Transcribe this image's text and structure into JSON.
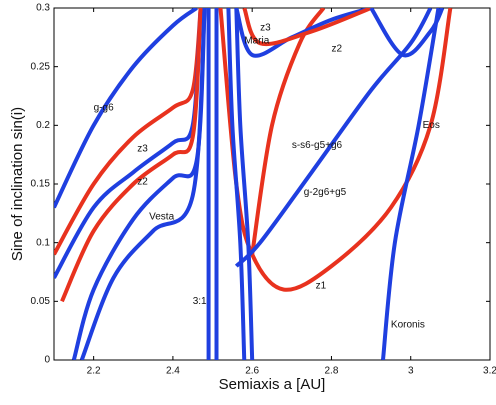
{
  "chart_data": {
    "type": "line",
    "xlabel": "Semiaxis a [AU]",
    "ylabel": "Sine of inclination sin(i)",
    "xlim": [
      2.1,
      3.2
    ],
    "ylim": [
      0,
      0.3
    ],
    "xticks": [
      2.2,
      2.4,
      2.6,
      2.8,
      3,
      3.2
    ],
    "yticks": [
      0,
      0.05,
      0.1,
      0.15,
      0.2,
      0.25,
      0.3
    ],
    "series": [
      {
        "color": "#1f3fe0",
        "x": [
          2.1,
          2.2,
          2.3,
          2.4,
          2.46
        ],
        "values": [
          0.13,
          0.2,
          0.25,
          0.285,
          0.3
        ]
      },
      {
        "color": "#e8321e",
        "x": [
          2.1,
          2.2,
          2.3,
          2.4,
          2.45,
          2.47
        ],
        "values": [
          0.09,
          0.15,
          0.19,
          0.215,
          0.23,
          0.3
        ]
      },
      {
        "color": "#1f3fe0",
        "x": [
          2.1,
          2.2,
          2.3,
          2.4,
          2.45,
          2.47
        ],
        "values": [
          0.07,
          0.13,
          0.16,
          0.185,
          0.2,
          0.3
        ]
      },
      {
        "color": "#e8321e",
        "x": [
          2.12,
          2.2,
          2.3,
          2.4,
          2.45,
          2.47
        ],
        "values": [
          0.05,
          0.11,
          0.15,
          0.175,
          0.19,
          0.3
        ]
      },
      {
        "color": "#1f3fe0",
        "x": [
          2.15,
          2.2,
          2.3,
          2.4,
          2.46,
          2.48
        ],
        "values": [
          0,
          0.06,
          0.12,
          0.155,
          0.17,
          0.3
        ]
      },
      {
        "color": "#1f3fe0",
        "x": [
          2.17,
          2.25,
          2.35,
          2.45,
          2.48
        ],
        "values": [
          0,
          0.07,
          0.11,
          0.14,
          0.3
        ]
      },
      {
        "color": "#1f3fe0",
        "x": [
          2.49,
          2.49
        ],
        "values": [
          0,
          0.3
        ]
      },
      {
        "color": "#1f3fe0",
        "x": [
          2.51,
          2.51
        ],
        "values": [
          0,
          0.3
        ]
      },
      {
        "color": "#e8321e",
        "x": [
          2.52,
          2.56,
          2.6,
          2.68,
          2.8,
          2.95,
          3.05,
          3.1
        ],
        "values": [
          0.3,
          0.15,
          0.09,
          0.06,
          0.08,
          0.13,
          0.2,
          0.3
        ]
      },
      {
        "color": "#e8321e",
        "x": [
          2.6,
          2.65,
          2.72,
          2.78
        ],
        "values": [
          0.09,
          0.2,
          0.27,
          0.3
        ]
      },
      {
        "color": "#1f3fe0",
        "x": [
          2.54,
          2.55,
          2.57,
          2.58
        ],
        "values": [
          0.3,
          0.2,
          0.1,
          0
        ]
      },
      {
        "color": "#1f3fe0",
        "x": [
          2.56,
          2.57,
          2.59,
          2.6
        ],
        "values": [
          0.3,
          0.2,
          0.1,
          0
        ]
      },
      {
        "color": "#1f3fe0",
        "x": [
          2.56,
          2.62,
          2.75,
          2.9,
          3.0,
          3.05
        ],
        "values": [
          0.08,
          0.1,
          0.16,
          0.23,
          0.27,
          0.3
        ]
      },
      {
        "color": "#1f3fe0",
        "x": [
          2.93,
          2.96,
          3.02,
          3.07
        ],
        "values": [
          0,
          0.1,
          0.2,
          0.3
        ]
      },
      {
        "color": "#1f3fe0",
        "x": [
          2.56,
          2.6,
          2.7,
          2.8,
          2.9
        ],
        "values": [
          0.3,
          0.26,
          0.275,
          0.29,
          0.3
        ]
      },
      {
        "color": "#e8321e",
        "x": [
          2.58,
          2.62,
          2.75,
          2.9
        ],
        "values": [
          0.3,
          0.27,
          0.28,
          0.3
        ]
      },
      {
        "color": "#1f3fe0",
        "x": [
          2.9,
          2.98,
          3.05,
          3.08
        ],
        "values": [
          0.3,
          0.26,
          0.28,
          0.3
        ]
      }
    ],
    "annotations": [
      {
        "text": "g-g6",
        "x": 2.2,
        "y": 0.215
      },
      {
        "text": "z3",
        "x": 2.31,
        "y": 0.18
      },
      {
        "text": "z2",
        "x": 2.31,
        "y": 0.152
      },
      {
        "text": "Vesta",
        "x": 2.34,
        "y": 0.122
      },
      {
        "text": "Maria",
        "x": 2.58,
        "y": 0.272
      },
      {
        "text": "z3",
        "x": 2.62,
        "y": 0.283
      },
      {
        "text": "z2",
        "x": 2.8,
        "y": 0.265
      },
      {
        "text": "s-s6-g5+g6",
        "x": 2.7,
        "y": 0.183
      },
      {
        "text": "g-2g6+g5",
        "x": 2.73,
        "y": 0.143
      },
      {
        "text": "z1",
        "x": 2.76,
        "y": 0.063
      },
      {
        "text": "3:1",
        "x": 2.45,
        "y": 0.05
      },
      {
        "text": "Eos",
        "x": 3.03,
        "y": 0.2
      },
      {
        "text": "Koronis",
        "x": 2.95,
        "y": 0.03
      }
    ]
  }
}
